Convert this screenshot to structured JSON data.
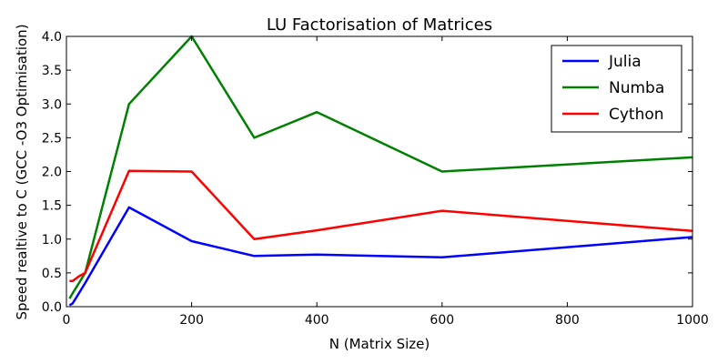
{
  "chart_data": {
    "type": "line",
    "title": "LU Factorisation of Matrices",
    "xlabel": "N (Matrix Size)",
    "ylabel": "Speed realtive to C (GCC -O3 Optimisation)",
    "xlim": [
      0,
      1000
    ],
    "ylim": [
      0.0,
      4.0
    ],
    "xticks": [
      0,
      200,
      400,
      600,
      800,
      1000
    ],
    "yticks": [
      0.0,
      0.5,
      1.0,
      1.5,
      2.0,
      2.5,
      3.0,
      3.5,
      4.0
    ],
    "ytick_labels": [
      "0.0",
      "0.5",
      "1.0",
      "1.5",
      "2.0",
      "2.5",
      "3.0",
      "3.5",
      "4.0"
    ],
    "grid": false,
    "legend_position": "top-right",
    "series": [
      {
        "name": "Julia",
        "color": "#0000ff",
        "x": [
          5,
          10,
          20,
          30,
          100,
          200,
          300,
          400,
          600,
          1000
        ],
        "y": [
          0.02,
          0.05,
          0.2,
          0.35,
          1.47,
          0.97,
          0.75,
          0.77,
          0.73,
          1.03
        ]
      },
      {
        "name": "Numba",
        "color": "#008000",
        "x": [
          5,
          10,
          20,
          30,
          100,
          200,
          300,
          400,
          600,
          1000
        ],
        "y": [
          0.12,
          0.2,
          0.35,
          0.5,
          3.0,
          4.0,
          2.5,
          2.88,
          2.0,
          2.21
        ]
      },
      {
        "name": "Cython",
        "color": "#ff0000",
        "x": [
          5,
          10,
          20,
          30,
          100,
          200,
          300,
          400,
          600,
          1000
        ],
        "y": [
          0.38,
          0.38,
          0.45,
          0.5,
          2.01,
          2.0,
          1.0,
          1.13,
          1.42,
          1.12
        ]
      }
    ]
  }
}
